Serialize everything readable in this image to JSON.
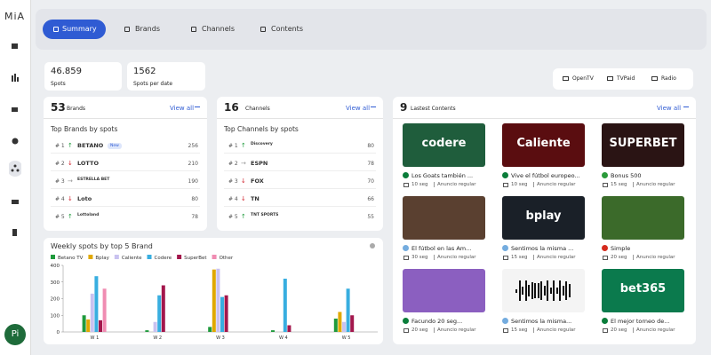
{
  "sidebar": {
    "logo": "MiA",
    "avatar": "Pi"
  },
  "tabs": [
    "Summary",
    "Brands",
    "Channels",
    "Contents"
  ],
  "stats": [
    {
      "value": "46.859",
      "label": "Spots"
    },
    {
      "value": "1562",
      "label": "Spots  per date"
    }
  ],
  "media": [
    "OpenTV",
    "TVPaid",
    "Radio"
  ],
  "brands": {
    "count": "53",
    "label": "Brands",
    "view_all": "View all",
    "subtitle": "Top Brands by spots",
    "rows": [
      {
        "rank": "# 1",
        "trend": "↑",
        "logo": "BETANO",
        "badge": "New",
        "value": "256"
      },
      {
        "rank": "# 2",
        "trend": "↓",
        "logo": "LOTTO",
        "value": "210"
      },
      {
        "rank": "# 3",
        "trend": "→",
        "logo": "ESTRELLA BET",
        "value": "190"
      },
      {
        "rank": "# 4",
        "trend": "↓",
        "logo": "Loto",
        "value": "80"
      },
      {
        "rank": "# 5",
        "trend": "↑",
        "logo": "Lottoland",
        "value": "78"
      }
    ]
  },
  "channels": {
    "count": "16",
    "label": "Channels",
    "view_all": "View all",
    "subtitle": "Top Channels by spots",
    "rows": [
      {
        "rank": "# 1",
        "trend": "↑",
        "logo": "Discovery",
        "value": "80"
      },
      {
        "rank": "# 2",
        "trend": "→",
        "logo": "ESPN",
        "value": "78"
      },
      {
        "rank": "# 3",
        "trend": "↓",
        "logo": "FOX",
        "value": "70"
      },
      {
        "rank": "# 4",
        "trend": "↓",
        "logo": "TN",
        "value": "66"
      },
      {
        "rank": "# 5",
        "trend": "↑",
        "logo": "TNT SPORTS",
        "value": "55"
      }
    ]
  },
  "contents": {
    "count": "9",
    "label": "Lastest Contents",
    "view_all": "View all",
    "items": [
      {
        "thumb_text": "codere",
        "title": "Los Goats también ...",
        "duration": "10 seg",
        "kind": "Anuncio regular"
      },
      {
        "thumb_text": "Caliente",
        "title": "Vive el fútbol europeo...",
        "duration": "10 seg",
        "kind": "Anuncio regular"
      },
      {
        "thumb_text": "SUPERBET",
        "title": "Bonus 500",
        "duration": "15 seg",
        "kind": "Anuncio regular"
      },
      {
        "title": "El fútbol en las Am...",
        "duration": "30 seg",
        "kind": "Anuncio regular"
      },
      {
        "thumb_text": "bplay",
        "title": "Sentimos la misma ...",
        "duration": "15 seg",
        "kind": "Anuncio regular"
      },
      {
        "title": "Simple",
        "duration": "20 seg",
        "kind": "Anuncio regular"
      },
      {
        "title": "Facundo 20 seg...",
        "duration": "20 seg",
        "kind": "Anuncio regular"
      },
      {
        "title": "Sentimos la misma...",
        "duration": "15 seg",
        "kind": "Anuncio regular"
      },
      {
        "thumb_text": "bet365",
        "title": "El mejor torneo de...",
        "duration": "20 seg",
        "kind": "Anuncio regular"
      }
    ]
  },
  "chart_data": {
    "type": "bar",
    "title": "Weekly spots by  top 5 Brand",
    "categories": [
      "W 1",
      "W 2",
      "W 3",
      "W 4",
      "W 5"
    ],
    "series": [
      {
        "name": "Betano TV",
        "color": "#1f9a3c",
        "values": [
          100,
          10,
          30,
          10,
          80
        ]
      },
      {
        "name": "Bplay",
        "color": "#e0a800",
        "values": [
          75,
          0,
          375,
          0,
          120
        ]
      },
      {
        "name": "Caliente",
        "color": "#c9c2f0",
        "values": [
          230,
          60,
          380,
          0,
          60
        ]
      },
      {
        "name": "Codere",
        "color": "#38aee0",
        "values": [
          335,
          220,
          210,
          320,
          260
        ]
      },
      {
        "name": "SuperBet",
        "color": "#a3174c",
        "values": [
          70,
          280,
          220,
          40,
          100
        ]
      },
      {
        "name": "Other",
        "color": "#f08cb2",
        "values": [
          260,
          0,
          0,
          0,
          0
        ]
      }
    ],
    "ylim": [
      0,
      400
    ],
    "yticks": [
      0,
      100,
      200,
      300,
      400
    ]
  }
}
